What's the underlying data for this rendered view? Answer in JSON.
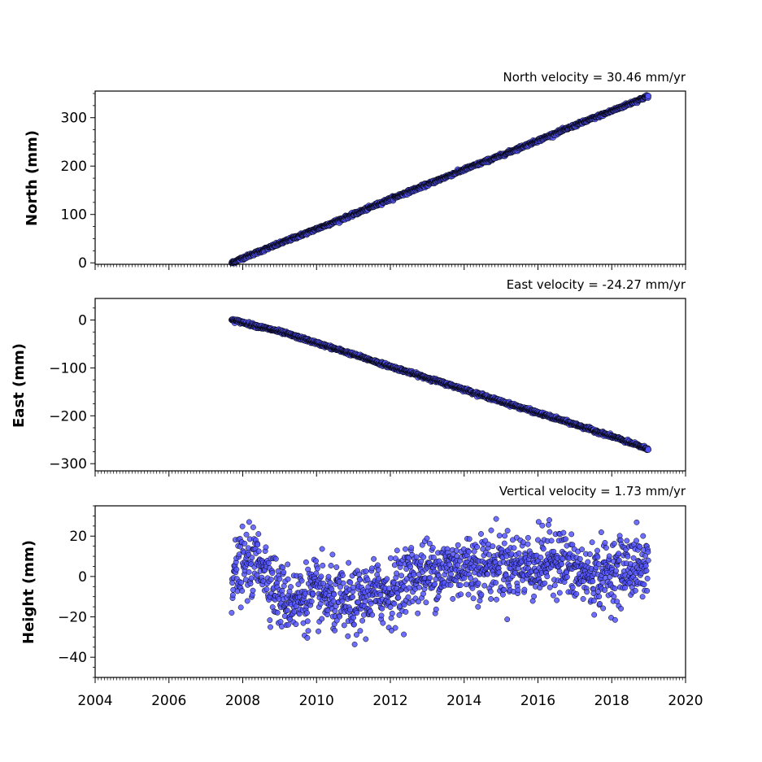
{
  "chart_data": [
    {
      "type": "scatter",
      "title": "North velocity = 30.46 mm/yr",
      "ylabel": "North (mm)",
      "xlim": [
        2004,
        2020
      ],
      "ylim": [
        -3,
        355
      ],
      "yticks": [
        0,
        100,
        200,
        300
      ],
      "ytick_labels": [
        "0",
        "100",
        "200",
        "300"
      ],
      "series": [
        {
          "x": [
            2007.7,
            2008.0,
            2008.5,
            2009.0,
            2010.0,
            2011.0,
            2012.0,
            2013.0,
            2014.0,
            2015.0,
            2016.0,
            2017.0,
            2018.0,
            2019.0
          ],
          "y": [
            0,
            10,
            25,
            40,
            70,
            100,
            132,
            162,
            193,
            222,
            253,
            284,
            314,
            345
          ]
        }
      ]
    },
    {
      "type": "scatter",
      "title": "East velocity = -24.27 mm/yr",
      "ylabel": "East (mm)",
      "xlim": [
        2004,
        2020
      ],
      "ylim": [
        -315,
        45
      ],
      "yticks": [
        0,
        -100,
        -200,
        -300
      ],
      "ytick_labels": [
        "0",
        "−100",
        "−200",
        "−300"
      ],
      "series": [
        {
          "x": [
            2007.7,
            2008.0,
            2008.5,
            2009.0,
            2010.0,
            2011.0,
            2012.0,
            2013.0,
            2014.0,
            2015.0,
            2016.0,
            2017.0,
            2018.0,
            2019.0
          ],
          "y": [
            0,
            -5,
            -15,
            -24,
            -48,
            -72,
            -97,
            -121,
            -145,
            -170,
            -194,
            -218,
            -243,
            -270
          ]
        }
      ]
    },
    {
      "type": "scatter",
      "title": "Vertical velocity = 1.73 mm/yr",
      "ylabel": "Height (mm)",
      "xlim": [
        2004,
        2020
      ],
      "ylim": [
        -50,
        35
      ],
      "yticks": [
        20,
        0,
        -20,
        -40
      ],
      "ytick_labels": [
        "20",
        "0",
        "−20",
        "−40"
      ],
      "series": [
        {
          "x": [
            2007.7,
            2008.0,
            2008.5,
            2009.0,
            2009.5,
            2010.0,
            2010.5,
            2011.0,
            2011.5,
            2012.0,
            2012.5,
            2013.0,
            2014.0,
            2015.0,
            2016.0,
            2016.5,
            2017.0,
            2017.5,
            2018.0,
            2018.5,
            2019.0
          ],
          "y": [
            0,
            5,
            8,
            -10,
            -12,
            -8,
            -12,
            -15,
            -8,
            -8,
            0,
            2,
            5,
            6,
            5,
            10,
            2,
            0,
            2,
            5,
            5
          ]
        }
      ]
    }
  ],
  "x_axis": {
    "ticks": [
      2004,
      2006,
      2008,
      2010,
      2012,
      2014,
      2016,
      2018,
      2020
    ],
    "tick_labels": [
      "2004",
      "2006",
      "2008",
      "2010",
      "2012",
      "2014",
      "2016",
      "2018",
      "2020"
    ]
  },
  "colors": {
    "marker_fill": "#5555ff",
    "marker_edge": "#000000"
  }
}
